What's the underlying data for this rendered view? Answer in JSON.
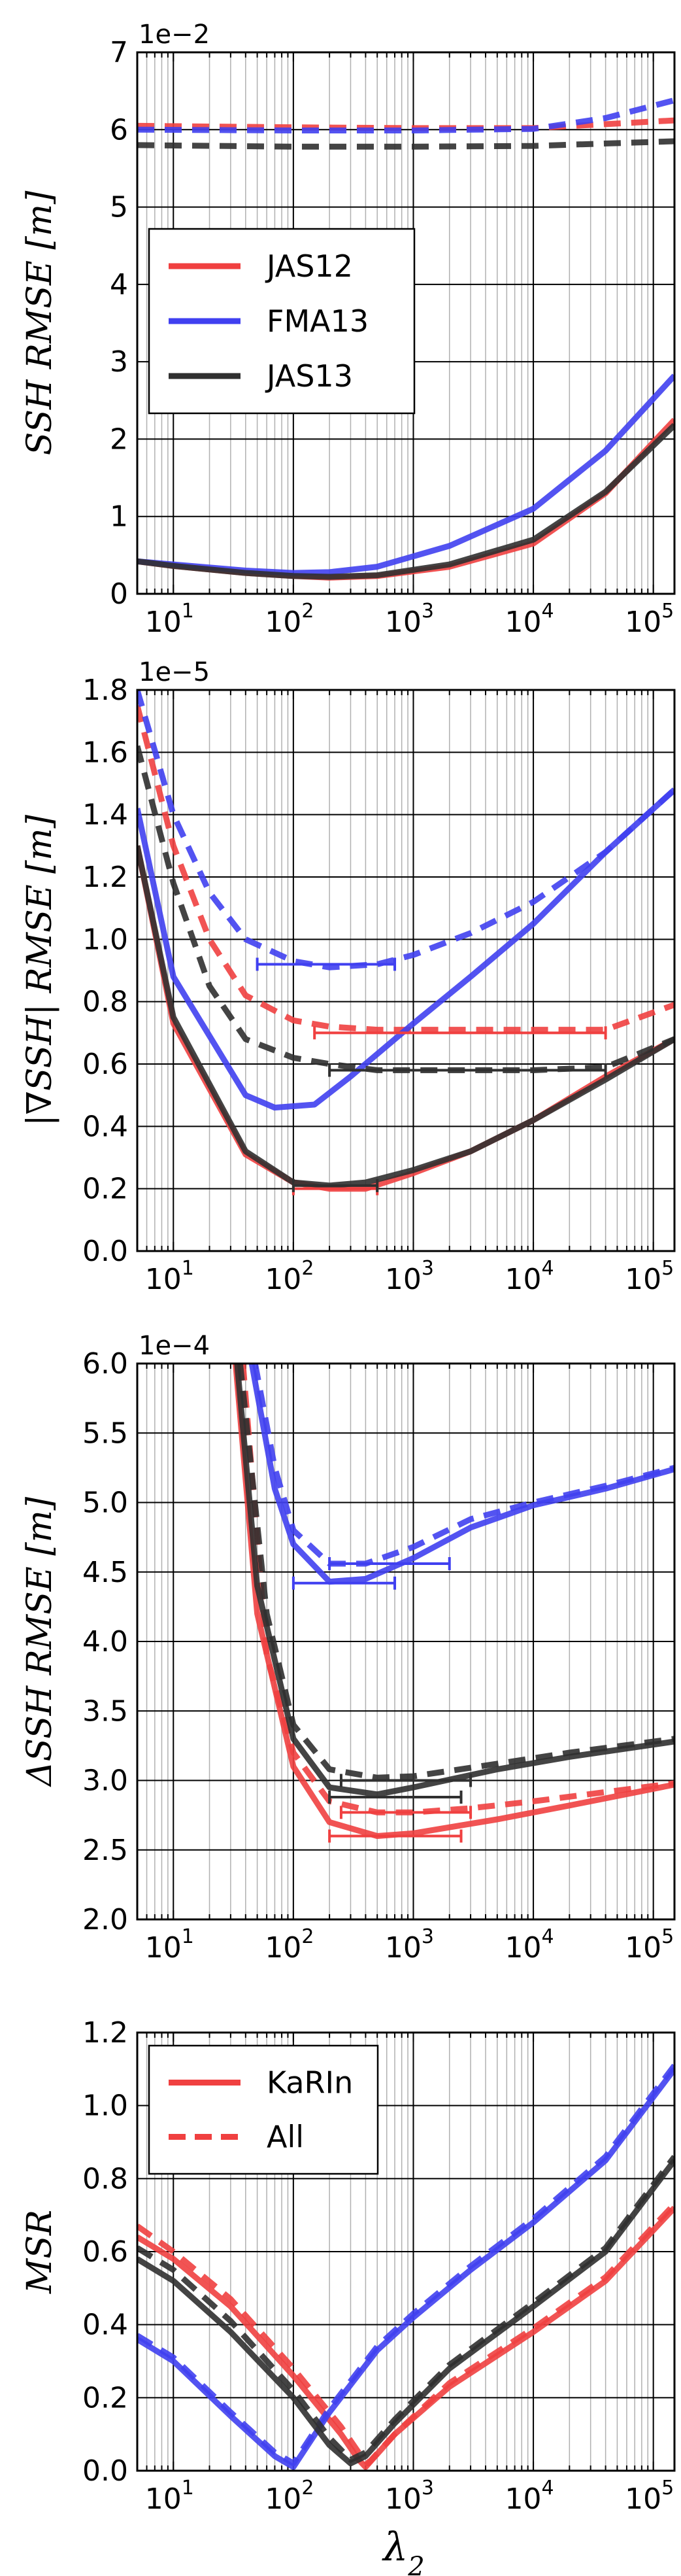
{
  "figure": {
    "xlabel": "λ",
    "xlabel_sub": "2",
    "colors": {
      "JAS12": "#f04040",
      "FMA13": "#4040f0",
      "JAS13": "#303030"
    }
  },
  "chart_data": [
    {
      "type": "line",
      "ylabel": "SSH RMSE [m]",
      "multiplier": "1e−2",
      "xscale": "log",
      "xlim": [
        5,
        150000
      ],
      "ylim": [
        0,
        7
      ],
      "yticks": [
        0,
        1,
        2,
        3,
        4,
        5,
        6,
        7
      ],
      "ytick_labels": [
        "0",
        "1",
        "2",
        "3",
        "4",
        "5",
        "6",
        "7"
      ],
      "grid": true,
      "legend": {
        "placement": "center-left",
        "entries": [
          "JAS12",
          "FMA13",
          "JAS13"
        ],
        "styles": [
          "solid",
          "solid",
          "solid"
        ],
        "colors": [
          "#f04040",
          "#4040f0",
          "#303030"
        ]
      },
      "series": [
        {
          "name": "JAS12",
          "style": "solid",
          "color": "#f04040",
          "x": [
            5,
            10,
            40,
            100,
            200,
            500,
            2000,
            10000,
            40000,
            150000
          ],
          "y": [
            0.42,
            0.36,
            0.27,
            0.23,
            0.21,
            0.23,
            0.35,
            0.65,
            1.3,
            2.25
          ]
        },
        {
          "name": "JAS12",
          "style": "dashed",
          "color": "#f04040",
          "x": [
            5,
            100,
            1000,
            10000,
            150000
          ],
          "y": [
            6.05,
            6.03,
            6.02,
            6.02,
            6.12
          ]
        },
        {
          "name": "FMA13",
          "style": "solid",
          "color": "#4040f0",
          "x": [
            5,
            10,
            40,
            100,
            200,
            500,
            2000,
            10000,
            40000,
            150000
          ],
          "y": [
            0.42,
            0.38,
            0.3,
            0.27,
            0.28,
            0.35,
            0.62,
            1.1,
            1.85,
            2.82
          ]
        },
        {
          "name": "FMA13",
          "style": "dashed",
          "color": "#4040f0",
          "x": [
            5,
            100,
            1000,
            10000,
            40000,
            150000
          ],
          "y": [
            6.0,
            5.99,
            5.99,
            6.01,
            6.15,
            6.38
          ]
        },
        {
          "name": "JAS13",
          "style": "solid",
          "color": "#303030",
          "x": [
            5,
            10,
            40,
            100,
            200,
            500,
            2000,
            10000,
            40000,
            150000
          ],
          "y": [
            0.42,
            0.36,
            0.27,
            0.23,
            0.22,
            0.24,
            0.38,
            0.7,
            1.32,
            2.18
          ]
        },
        {
          "name": "JAS13",
          "style": "dashed",
          "color": "#303030",
          "x": [
            5,
            100,
            1000,
            10000,
            150000
          ],
          "y": [
            5.8,
            5.78,
            5.78,
            5.79,
            5.85
          ]
        }
      ]
    },
    {
      "type": "line",
      "ylabel": "|∇SSH| RMSE [m]",
      "multiplier": "1e−5",
      "xscale": "log",
      "xlim": [
        5,
        150000
      ],
      "ylim": [
        0,
        1.8
      ],
      "yticks": [
        0,
        0.2,
        0.4,
        0.6,
        0.8,
        1.0,
        1.2,
        1.4,
        1.6,
        1.8
      ],
      "ytick_labels": [
        "0.0",
        "0.2",
        "0.4",
        "0.6",
        "0.8",
        "1.0",
        "1.2",
        "1.4",
        "1.6",
        "1.8"
      ],
      "grid": true,
      "series": [
        {
          "name": "JAS12",
          "style": "solid",
          "color": "#f04040",
          "x": [
            5,
            10,
            40,
            100,
            200,
            400,
            1000,
            3000,
            10000,
            40000,
            150000
          ],
          "y": [
            1.3,
            0.73,
            0.31,
            0.22,
            0.2,
            0.2,
            0.25,
            0.32,
            0.42,
            0.56,
            0.68
          ]
        },
        {
          "name": "JAS12",
          "style": "dashed",
          "color": "#f04040",
          "x": [
            5,
            10,
            20,
            40,
            100,
            200,
            500,
            1000,
            10000,
            40000,
            150000
          ],
          "y": [
            1.75,
            1.3,
            1.0,
            0.82,
            0.74,
            0.72,
            0.71,
            0.71,
            0.71,
            0.71,
            0.79
          ]
        },
        {
          "name": "FMA13",
          "style": "solid",
          "color": "#4040f0",
          "x": [
            5,
            10,
            40,
            70,
            150,
            300,
            1000,
            3000,
            10000,
            40000,
            150000
          ],
          "y": [
            1.42,
            0.88,
            0.5,
            0.46,
            0.47,
            0.56,
            0.73,
            0.88,
            1.05,
            1.28,
            1.48
          ]
        },
        {
          "name": "FMA13",
          "style": "dashed",
          "color": "#4040f0",
          "x": [
            5,
            10,
            20,
            40,
            100,
            200,
            500,
            1000,
            3000,
            10000,
            40000,
            150000
          ],
          "y": [
            1.8,
            1.4,
            1.15,
            1.0,
            0.93,
            0.91,
            0.92,
            0.95,
            1.02,
            1.12,
            1.28,
            1.48
          ]
        },
        {
          "name": "JAS13",
          "style": "solid",
          "color": "#303030",
          "x": [
            5,
            10,
            40,
            100,
            200,
            400,
            1000,
            3000,
            10000,
            40000,
            150000
          ],
          "y": [
            1.3,
            0.75,
            0.32,
            0.22,
            0.21,
            0.22,
            0.26,
            0.32,
            0.42,
            0.55,
            0.68
          ]
        },
        {
          "name": "JAS13",
          "style": "dashed",
          "color": "#303030",
          "x": [
            5,
            10,
            20,
            40,
            100,
            200,
            500,
            1000,
            10000,
            40000,
            150000
          ],
          "y": [
            1.62,
            1.18,
            0.85,
            0.68,
            0.62,
            0.6,
            0.58,
            0.58,
            0.58,
            0.59,
            0.68
          ]
        }
      ],
      "error_bars": [
        {
          "color": "#4040f0",
          "x": [
            50,
            700
          ],
          "y": 0.92
        },
        {
          "color": "#f04040",
          "x": [
            150,
            40000
          ],
          "y": 0.7
        },
        {
          "color": "#303030",
          "x": [
            200,
            40000
          ],
          "y": 0.58
        },
        {
          "color": "#f04040",
          "x": [
            100,
            500
          ],
          "y": 0.2
        },
        {
          "color": "#303030",
          "x": [
            100,
            500
          ],
          "y": 0.21
        }
      ]
    },
    {
      "type": "line",
      "ylabel": "ΔSSH RMSE [m]",
      "multiplier": "1e−4",
      "xscale": "log",
      "xlim": [
        5,
        150000
      ],
      "ylim": [
        2.0,
        6.0
      ],
      "yticks": [
        2.0,
        2.5,
        3.0,
        3.5,
        4.0,
        4.5,
        5.0,
        5.5,
        6.0
      ],
      "ytick_labels": [
        "2.0",
        "2.5",
        "3.0",
        "3.5",
        "4.0",
        "4.5",
        "5.0",
        "5.5",
        "6.0"
      ],
      "grid": true,
      "series": [
        {
          "name": "JAS12",
          "style": "solid",
          "color": "#f04040",
          "x": [
            33,
            50,
            100,
            200,
            500,
            1000,
            5000,
            20000,
            150000
          ],
          "y": [
            6.0,
            4.2,
            3.1,
            2.7,
            2.6,
            2.62,
            2.72,
            2.82,
            2.97
          ]
        },
        {
          "name": "JAS12",
          "style": "dashed",
          "color": "#f04040",
          "x": [
            38,
            60,
            100,
            200,
            500,
            1000,
            3000,
            10000,
            150000
          ],
          "y": [
            6.0,
            3.9,
            3.2,
            2.85,
            2.77,
            2.77,
            2.8,
            2.85,
            2.98
          ]
        },
        {
          "name": "FMA13",
          "style": "solid",
          "color": "#4040f0",
          "x": [
            45,
            70,
            100,
            200,
            400,
            1000,
            3000,
            10000,
            40000,
            150000
          ],
          "y": [
            6.0,
            5.1,
            4.7,
            4.43,
            4.45,
            4.6,
            4.82,
            4.98,
            5.1,
            5.24
          ]
        },
        {
          "name": "FMA13",
          "style": "dashed",
          "color": "#4040f0",
          "x": [
            48,
            70,
            100,
            200,
            400,
            1000,
            3000,
            10000,
            40000,
            150000
          ],
          "y": [
            6.0,
            5.25,
            4.8,
            4.56,
            4.56,
            4.68,
            4.88,
            5.0,
            5.12,
            5.25
          ]
        },
        {
          "name": "JAS13",
          "style": "solid",
          "color": "#303030",
          "x": [
            34,
            50,
            100,
            200,
            500,
            1000,
            5000,
            20000,
            150000
          ],
          "y": [
            6.0,
            4.4,
            3.3,
            2.95,
            2.9,
            2.95,
            3.08,
            3.17,
            3.28
          ]
        },
        {
          "name": "JAS13",
          "style": "dashed",
          "color": "#303030",
          "x": [
            36,
            60,
            100,
            200,
            500,
            1000,
            5000,
            20000,
            150000
          ],
          "y": [
            6.0,
            4.2,
            3.4,
            3.08,
            3.02,
            3.03,
            3.12,
            3.2,
            3.3
          ]
        }
      ],
      "error_bars": [
        {
          "color": "#4040f0",
          "x": [
            100,
            700
          ],
          "y": 4.42
        },
        {
          "color": "#4040f0",
          "x": [
            200,
            2000
          ],
          "y": 4.56
        },
        {
          "color": "#f04040",
          "x": [
            200,
            2500
          ],
          "y": 2.6
        },
        {
          "color": "#f04040",
          "x": [
            250,
            3000
          ],
          "y": 2.77
        },
        {
          "color": "#303030",
          "x": [
            200,
            2500
          ],
          "y": 2.88
        },
        {
          "color": "#303030",
          "x": [
            250,
            3000
          ],
          "y": 3.0
        }
      ]
    },
    {
      "type": "line",
      "ylabel": "MSR",
      "multiplier": "",
      "xscale": "log",
      "xlim": [
        5,
        150000
      ],
      "ylim": [
        0,
        1.2
      ],
      "yticks": [
        0,
        0.2,
        0.4,
        0.6,
        0.8,
        1.0,
        1.2
      ],
      "ytick_labels": [
        "0.0",
        "0.2",
        "0.4",
        "0.6",
        "0.8",
        "1.0",
        "1.2"
      ],
      "grid": true,
      "legend": {
        "placement": "top-left",
        "entries": [
          "KaRIn",
          "All"
        ],
        "styles": [
          "solid",
          "dashed"
        ],
        "colors": [
          "#f04040",
          "#f04040"
        ]
      },
      "series": [
        {
          "name": "JAS12",
          "style": "solid",
          "color": "#f04040",
          "x": [
            5,
            10,
            30,
            100,
            250,
            350,
            400,
            700,
            2000,
            10000,
            40000,
            150000
          ],
          "y": [
            0.64,
            0.58,
            0.45,
            0.26,
            0.1,
            0.03,
            0.01,
            0.1,
            0.23,
            0.38,
            0.52,
            0.72
          ]
        },
        {
          "name": "JAS12",
          "style": "dashed",
          "color": "#f04040",
          "x": [
            5,
            10,
            30,
            100,
            250,
            350,
            420,
            700,
            2000,
            10000,
            40000,
            150000
          ],
          "y": [
            0.67,
            0.6,
            0.47,
            0.28,
            0.12,
            0.05,
            0.02,
            0.1,
            0.24,
            0.39,
            0.53,
            0.73
          ]
        },
        {
          "name": "FMA13",
          "style": "solid",
          "color": "#4040f0",
          "x": [
            5,
            10,
            30,
            70,
            100,
            200,
            500,
            1000,
            3000,
            10000,
            40000,
            150000
          ],
          "y": [
            0.36,
            0.3,
            0.15,
            0.04,
            0.01,
            0.16,
            0.33,
            0.42,
            0.55,
            0.68,
            0.85,
            1.1
          ]
        },
        {
          "name": "FMA13",
          "style": "dashed",
          "color": "#4040f0",
          "x": [
            5,
            10,
            30,
            70,
            100,
            200,
            500,
            1000,
            3000,
            10000,
            40000,
            150000
          ],
          "y": [
            0.37,
            0.31,
            0.16,
            0.05,
            0.02,
            0.17,
            0.34,
            0.43,
            0.56,
            0.69,
            0.86,
            1.11
          ]
        },
        {
          "name": "JAS13",
          "style": "solid",
          "color": "#303030",
          "x": [
            5,
            10,
            30,
            100,
            200,
            300,
            400,
            700,
            2000,
            10000,
            40000,
            150000
          ],
          "y": [
            0.58,
            0.52,
            0.38,
            0.2,
            0.07,
            0.02,
            0.04,
            0.13,
            0.28,
            0.45,
            0.6,
            0.85
          ]
        },
        {
          "name": "JAS13",
          "style": "dashed",
          "color": "#303030",
          "x": [
            5,
            10,
            30,
            100,
            200,
            300,
            400,
            700,
            2000,
            10000,
            40000,
            150000
          ],
          "y": [
            0.61,
            0.55,
            0.41,
            0.22,
            0.09,
            0.03,
            0.05,
            0.14,
            0.29,
            0.46,
            0.61,
            0.86
          ]
        }
      ]
    }
  ]
}
